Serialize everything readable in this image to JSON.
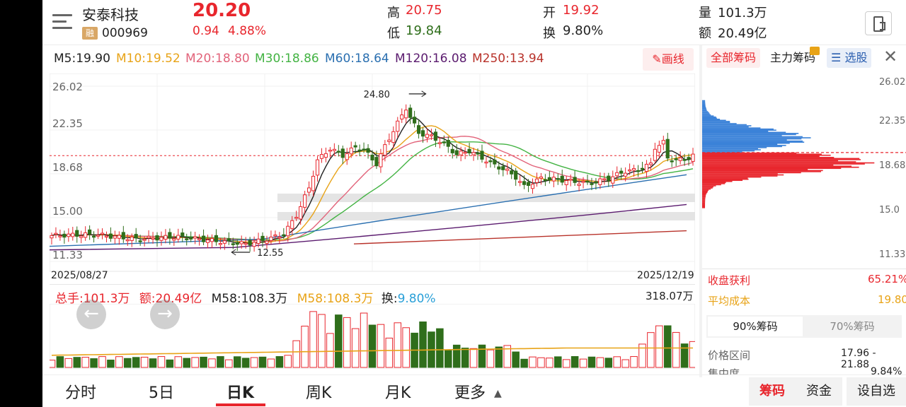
{
  "header": {
    "name": "安泰科技",
    "margin_badge": "融",
    "code": "000969",
    "price": "20.20",
    "change": "0.94",
    "change_pct": "4.88%",
    "high_label": "高",
    "high": "20.75",
    "low_label": "低",
    "low": "19.84",
    "open_label": "开",
    "open": "19.92",
    "turnover_label": "换",
    "turnover": "9.80%",
    "volume_label": "量",
    "volume": "101.3万",
    "amount_label": "额",
    "amount": "20.49亿"
  },
  "ma_legend": [
    {
      "label": "M5:19.90",
      "color": "#222222"
    },
    {
      "label": "M10:19.52",
      "color": "#e8a317"
    },
    {
      "label": "M20:18.80",
      "color": "#e2637a"
    },
    {
      "label": "M30:18.86",
      "color": "#43b343"
    },
    {
      "label": "M60:18.64",
      "color": "#2a6fb0"
    },
    {
      "label": "M120:16.08",
      "color": "#5a1a6e"
    },
    {
      "label": "M250:13.94",
      "color": "#b8322a"
    }
  ],
  "draw_button": "画线",
  "chart": {
    "y_ticks": [
      "26.02",
      "22.35",
      "18.68",
      "15.00",
      "11.33"
    ],
    "start_date": "2025/08/27",
    "end_date": "2025/12/19",
    "high_marker": "24.80",
    "low_marker": "12.55"
  },
  "volume_panel": {
    "total_hands": "总手:101.3万",
    "amount": "额:20.49亿",
    "m58_a": "M58:108.3万",
    "m58_b": "M58:108.3万",
    "turnover_label": "换:",
    "turnover_value": "9.80%",
    "max": "318.07万"
  },
  "chips": {
    "tab_all": "全部筹码",
    "tab_main": "主力筹码",
    "tab_select": "选股",
    "y_ticks": [
      "26.02",
      "22.35",
      "18.68",
      "15.0",
      "11.33"
    ],
    "profit_label": "收盘获利",
    "profit": "65.21%",
    "avg_cost_label": "平均成本",
    "avg_cost": "19.80",
    "tab90": "90%筹码",
    "tab70": "70%筹码",
    "range_label": "价格区间",
    "range": "17.96 - 21.88",
    "concentration_label": "集中度",
    "concentration": "9.84%"
  },
  "bottom_tabs": [
    "分时",
    "5日",
    "日K",
    "周K",
    "月K",
    "更多"
  ],
  "bottom_right": {
    "chips": "筹码",
    "funds": "资金",
    "settings": "设自选"
  },
  "colors": {
    "up": "#e8262d",
    "down": "#2f6e1b",
    "accent": "#e8262d"
  }
}
